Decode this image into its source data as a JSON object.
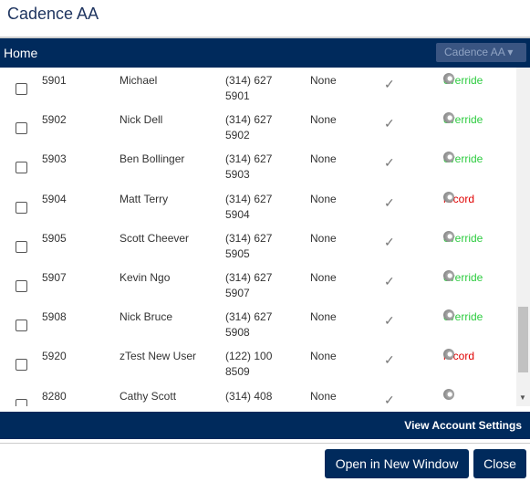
{
  "header": {
    "title": "Cadence AA"
  },
  "nav": {
    "title": "Home",
    "dropdown": "Cadence AA"
  },
  "rows": [
    {
      "ext": "5901",
      "name": "Michael",
      "phone": "(314) 627 5901",
      "status": "None",
      "action": "override",
      "action_color": "#2ecc40"
    },
    {
      "ext": "5902",
      "name": "Nick Dell",
      "phone": "(314) 627 5902",
      "status": "None",
      "action": "override",
      "action_color": "#2ecc40"
    },
    {
      "ext": "5903",
      "name": "Ben Bollinger",
      "phone": "(314) 627 5903",
      "status": "None",
      "action": "override",
      "action_color": "#2ecc40"
    },
    {
      "ext": "5904",
      "name": "Matt Terry",
      "phone": "(314) 627 5904",
      "status": "None",
      "action": "record",
      "action_color": "#e00000"
    },
    {
      "ext": "5905",
      "name": "Scott Cheever",
      "phone": "(314) 627 5905",
      "status": "None",
      "action": "override",
      "action_color": "#2ecc40"
    },
    {
      "ext": "5907",
      "name": "Kevin Ngo",
      "phone": "(314) 627 5907",
      "status": "None",
      "action": "override",
      "action_color": "#2ecc40"
    },
    {
      "ext": "5908",
      "name": "Nick Bruce",
      "phone": "(314) 627 5908",
      "status": "None",
      "action": "override",
      "action_color": "#2ecc40"
    },
    {
      "ext": "5920",
      "name": "zTest New User",
      "phone": "(122) 100 8509",
      "status": "None",
      "action": "record",
      "action_color": "#e00000"
    },
    {
      "ext": "8280",
      "name": "Cathy Scott",
      "phone": "(314) 408",
      "status": "None",
      "action": null,
      "action_color": null
    }
  ],
  "footer": {
    "link": "View Account Settings"
  },
  "buttons": {
    "open": "Open in New Window",
    "close": "Close"
  }
}
